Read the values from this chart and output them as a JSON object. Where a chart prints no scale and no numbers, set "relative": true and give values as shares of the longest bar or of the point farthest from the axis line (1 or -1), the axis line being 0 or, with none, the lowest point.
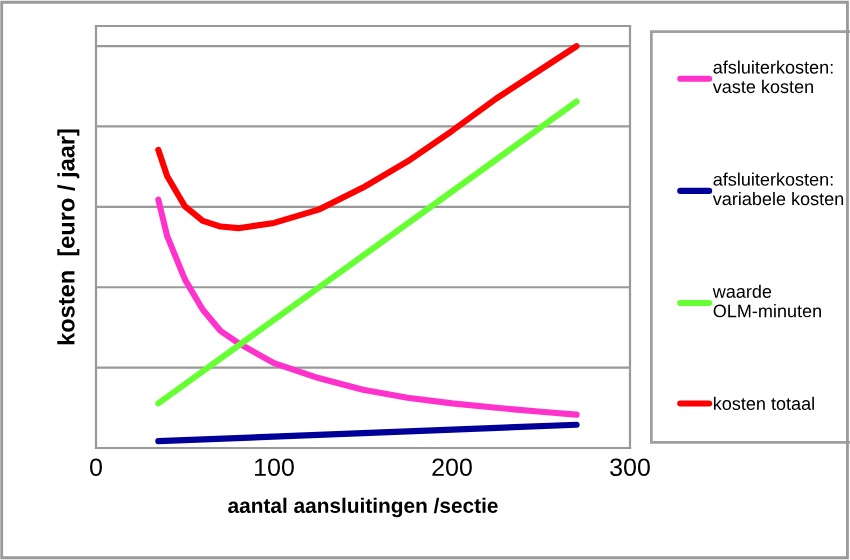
{
  "chart_data": {
    "type": "line",
    "relative": true,
    "xlabel": "aantal aansluitingen /sectie",
    "ylabel": "kosten  [euro / jaar]",
    "xlim": [
      0,
      300
    ],
    "xticks": [
      0,
      100,
      200,
      300
    ],
    "tick_labels": "x",
    "grid": "y",
    "legend": "right",
    "marker": "none",
    "line_style": "solid",
    "series": [
      {
        "name": "afsluiterkosten: vaste kosten",
        "color": "#ff33cc",
        "x": [
          35,
          40,
          50,
          60,
          70,
          80,
          100,
          125,
          150,
          175,
          200,
          225,
          250,
          270
        ],
        "values": [
          0.618,
          0.527,
          0.419,
          0.344,
          0.291,
          0.261,
          0.211,
          0.174,
          0.145,
          0.125,
          0.111,
          0.1,
          0.09,
          0.083
        ]
      },
      {
        "name": "afsluiterkosten: variabele kosten",
        "color": "#000099",
        "x": [
          35,
          150,
          270
        ],
        "values": [
          0.017,
          0.037,
          0.058
        ]
      },
      {
        "name": "waarde OLM-minuten",
        "color": "#66ff33",
        "x": [
          35,
          270
        ],
        "values": [
          0.111,
          0.862
        ]
      },
      {
        "name": "kosten totaal",
        "color": "#ff0000",
        "x": [
          35,
          40,
          50,
          60,
          70,
          80,
          100,
          125,
          150,
          175,
          200,
          225,
          250,
          270
        ],
        "values": [
          0.742,
          0.676,
          0.601,
          0.565,
          0.551,
          0.547,
          0.56,
          0.593,
          0.648,
          0.713,
          0.789,
          0.87,
          0.942,
          1.0
        ]
      }
    ]
  }
}
